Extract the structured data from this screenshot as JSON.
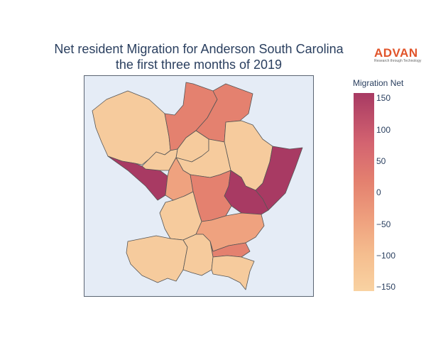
{
  "title": {
    "line1": "Net resident Migration for Anderson South Carolina",
    "line2": "the first three months of 2019"
  },
  "logo": {
    "name": "ADVAN",
    "tagline": "Research through Technology",
    "color": "#e1542a"
  },
  "colorbar": {
    "title": "Migration Net",
    "min": -160,
    "max": 155,
    "ticks": [
      "150",
      "100",
      "50",
      "0",
      "−50",
      "−100",
      "−150"
    ]
  },
  "map": {
    "background": "#e5ecf6",
    "region_fills": {
      "very_high": "#a83a63",
      "high": "#d36370",
      "mid": "#e4816f",
      "low": "#efa27f",
      "very_low": "#f6cb9d"
    }
  }
}
